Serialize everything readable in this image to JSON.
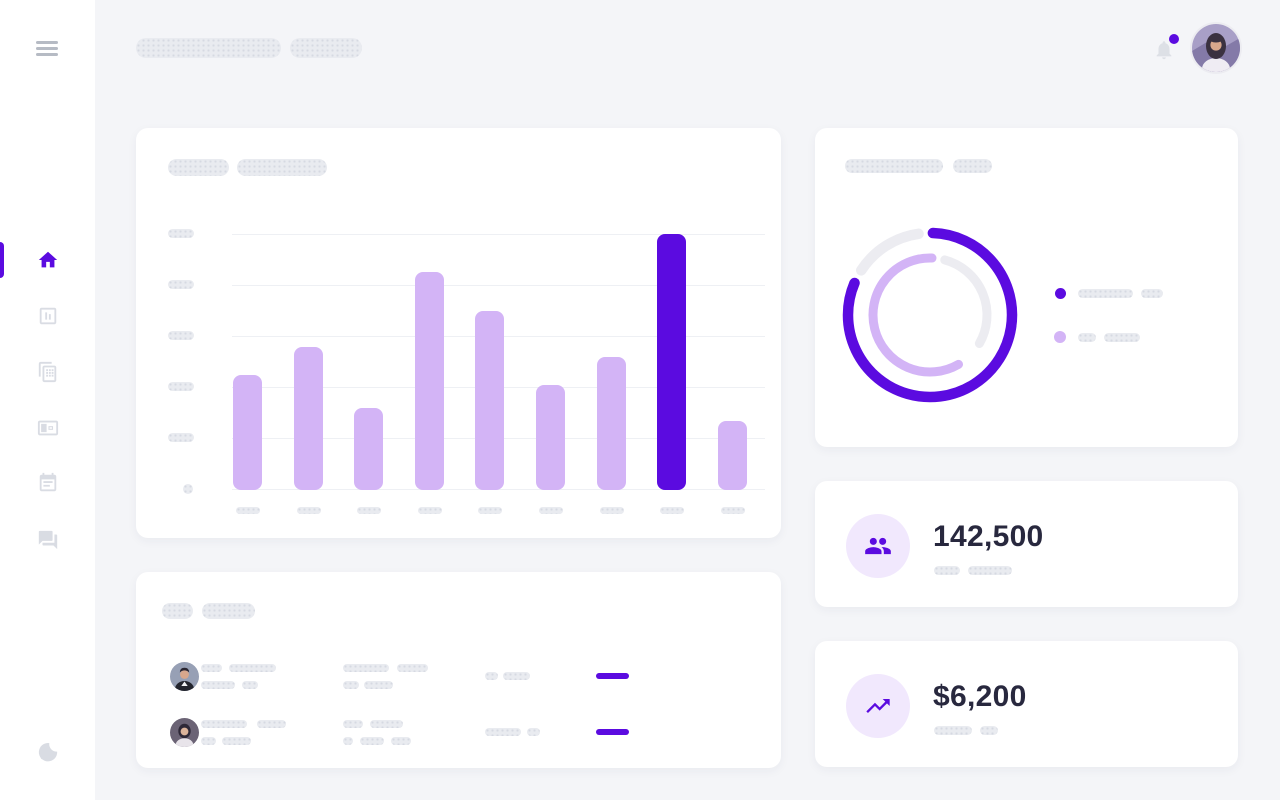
{
  "theme": {
    "accent": "#5b0be0",
    "accent_light": "#d3b4f6",
    "icon_circle_bg": "#f1e8fd",
    "skeleton_gray": "#e9ebf0",
    "page_bg": "#f4f5f8",
    "card_bg": "#ffffff",
    "value_text": "#28283e"
  },
  "sidebar": {
    "menu_icon": "hamburger-icon",
    "items": [
      {
        "icon": "home-icon",
        "active": true
      },
      {
        "icon": "poll-chart-icon",
        "active": false
      },
      {
        "icon": "copy-table-icon",
        "active": false
      },
      {
        "icon": "card-widget-icon",
        "active": false
      },
      {
        "icon": "event-note-icon",
        "active": false
      },
      {
        "icon": "chat-icon",
        "active": false
      }
    ],
    "footer_icon": "moon-dark-mode-icon"
  },
  "header": {
    "title_skeleton": true,
    "notification": {
      "icon": "bell-icon",
      "has_unread_dot": true
    },
    "avatar": "user-photo"
  },
  "stats": [
    {
      "id": "users",
      "value": "142,500",
      "icon": "group-icon",
      "label_skeleton": true
    },
    {
      "id": "revenue",
      "value": "$6,200",
      "icon": "trending-up-icon",
      "label_skeleton": true
    }
  ],
  "table": {
    "title_skeleton": true,
    "rows": 2,
    "row_content": "skeleton placeholders with avatar photo and purple progress bar"
  },
  "chart_data": [
    {
      "type": "bar",
      "title": "skeleton placeholder (no text)",
      "values": [
        45,
        56,
        32,
        85,
        70,
        41,
        52,
        100,
        27
      ],
      "max_value": 100,
      "highlight_index": 7,
      "bar_color": "#d3b4f6",
      "highlight_color": "#5b0be0",
      "gridlines": 6,
      "y_axis": "skeleton pills (no numeric labels)",
      "x_axis": "9 skeleton pills (no text labels)"
    },
    {
      "type": "donut",
      "title": "skeleton placeholder (no text)",
      "rings": [
        {
          "name": "outer",
          "value_pct": 81,
          "color": "#5b0be0",
          "track_color": "#ececf1",
          "radius": 82,
          "stroke_width": 10.5,
          "arc_start_deg": 2,
          "arc_end_deg": 293,
          "track_start_deg": 303,
          "track_end_deg": 352
        },
        {
          "name": "inner",
          "value_pct": 59,
          "color": "#d3b4f6",
          "track_color": "#ececf1",
          "radius": 57,
          "stroke_width": 9,
          "arc_start_deg": 150,
          "arc_end_deg": 362,
          "track_start_deg": 15,
          "track_end_deg": 120
        }
      ],
      "legend": [
        {
          "color": "#5b0be0",
          "label": "skeleton placeholder"
        },
        {
          "color": "#d3b4f6",
          "label": "skeleton placeholder"
        }
      ],
      "legend_position": "right"
    }
  ]
}
